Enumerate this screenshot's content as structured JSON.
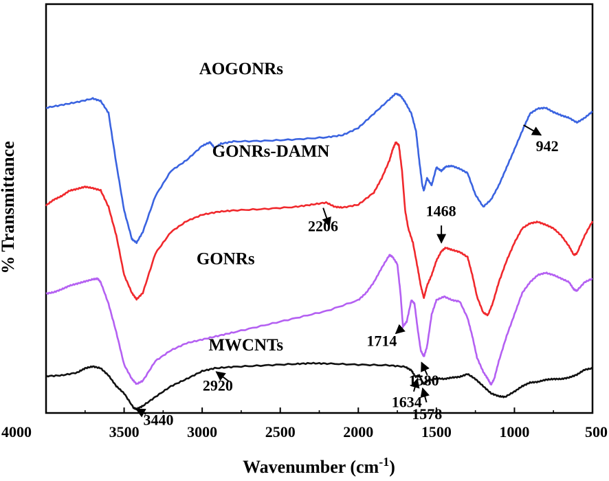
{
  "chart_data": {
    "type": "line",
    "title": "",
    "xlabel": "Wavenumber (cm",
    "xlabel_sup": "-1",
    "xlabel_close": ")",
    "ylabel": "% Transmittance",
    "xlim": [
      4000,
      500
    ],
    "x_reversed": true,
    "y_ticks_shown": false,
    "grid": false,
    "legend": "none (series labelled directly on plot)",
    "x_ticks": [
      4000,
      3500,
      3000,
      2500,
      2000,
      1500,
      1000,
      500
    ],
    "x_tick_labels": [
      "4000",
      "3500",
      "3000",
      "2500",
      "2000",
      "1500",
      "1000",
      "500"
    ],
    "series": [
      {
        "name": "AOGONRs",
        "color": "#3a63e0",
        "points": [
          [
            4000,
            0.776
          ],
          [
            3900,
            0.784
          ],
          [
            3800,
            0.792
          ],
          [
            3700,
            0.802
          ],
          [
            3650,
            0.795
          ],
          [
            3600,
            0.762
          ],
          [
            3550,
            0.62
          ],
          [
            3500,
            0.49
          ],
          [
            3450,
            0.41
          ],
          [
            3420,
            0.4
          ],
          [
            3380,
            0.43
          ],
          [
            3300,
            0.53
          ],
          [
            3200,
            0.6
          ],
          [
            3100,
            0.63
          ],
          [
            3000,
            0.67
          ],
          [
            2950,
            0.68
          ],
          [
            2920,
            0.664
          ],
          [
            2880,
            0.676
          ],
          [
            2800,
            0.682
          ],
          [
            2600,
            0.684
          ],
          [
            2400,
            0.688
          ],
          [
            2200,
            0.694
          ],
          [
            2100,
            0.7
          ],
          [
            2000,
            0.72
          ],
          [
            1900,
            0.76
          ],
          [
            1800,
            0.8
          ],
          [
            1760,
            0.816
          ],
          [
            1730,
            0.81
          ],
          [
            1700,
            0.792
          ],
          [
            1660,
            0.76
          ],
          [
            1630,
            0.71
          ],
          [
            1610,
            0.63
          ],
          [
            1590,
            0.56
          ],
          [
            1580,
            0.545
          ],
          [
            1560,
            0.58
          ],
          [
            1530,
            0.56
          ],
          [
            1500,
            0.61
          ],
          [
            1468,
            0.6
          ],
          [
            1440,
            0.612
          ],
          [
            1400,
            0.614
          ],
          [
            1350,
            0.606
          ],
          [
            1300,
            0.594
          ],
          [
            1250,
            0.534
          ],
          [
            1200,
            0.5
          ],
          [
            1150,
            0.52
          ],
          [
            1100,
            0.56
          ],
          [
            1050,
            0.61
          ],
          [
            1000,
            0.66
          ],
          [
            942,
            0.72
          ],
          [
            900,
            0.76
          ],
          [
            850,
            0.774
          ],
          [
            800,
            0.776
          ],
          [
            750,
            0.764
          ],
          [
            700,
            0.755
          ],
          [
            650,
            0.748
          ],
          [
            600,
            0.735
          ],
          [
            550,
            0.748
          ],
          [
            500,
            0.766
          ]
        ]
      },
      {
        "name": "GONRs-DAMN",
        "color": "#f0282c",
        "points": [
          [
            4000,
            0.504
          ],
          [
            3950,
            0.52
          ],
          [
            3900,
            0.53
          ],
          [
            3850,
            0.545
          ],
          [
            3800,
            0.55
          ],
          [
            3750,
            0.556
          ],
          [
            3700,
            0.552
          ],
          [
            3650,
            0.546
          ],
          [
            3600,
            0.5
          ],
          [
            3550,
            0.42
          ],
          [
            3500,
            0.31
          ],
          [
            3450,
            0.26
          ],
          [
            3420,
            0.242
          ],
          [
            3380,
            0.26
          ],
          [
            3300,
            0.37
          ],
          [
            3200,
            0.43
          ],
          [
            3100,
            0.46
          ],
          [
            3000,
            0.478
          ],
          [
            2900,
            0.486
          ],
          [
            2800,
            0.49
          ],
          [
            2600,
            0.494
          ],
          [
            2400,
            0.5
          ],
          [
            2300,
            0.506
          ],
          [
            2206,
            0.512
          ],
          [
            2150,
            0.5
          ],
          [
            2100,
            0.498
          ],
          [
            2000,
            0.506
          ],
          [
            1900,
            0.54
          ],
          [
            1850,
            0.58
          ],
          [
            1800,
            0.63
          ],
          [
            1780,
            0.66
          ],
          [
            1760,
            0.68
          ],
          [
            1740,
            0.672
          ],
          [
            1720,
            0.6
          ],
          [
            1700,
            0.49
          ],
          [
            1680,
            0.44
          ],
          [
            1650,
            0.4
          ],
          [
            1620,
            0.33
          ],
          [
            1600,
            0.28
          ],
          [
            1580,
            0.246
          ],
          [
            1560,
            0.28
          ],
          [
            1530,
            0.31
          ],
          [
            1500,
            0.35
          ],
          [
            1468,
            0.376
          ],
          [
            1440,
            0.386
          ],
          [
            1400,
            0.38
          ],
          [
            1350,
            0.374
          ],
          [
            1300,
            0.36
          ],
          [
            1270,
            0.31
          ],
          [
            1240,
            0.25
          ],
          [
            1200,
            0.205
          ],
          [
            1170,
            0.198
          ],
          [
            1140,
            0.23
          ],
          [
            1100,
            0.29
          ],
          [
            1050,
            0.35
          ],
          [
            1000,
            0.4
          ],
          [
            950,
            0.44
          ],
          [
            900,
            0.454
          ],
          [
            850,
            0.458
          ],
          [
            800,
            0.45
          ],
          [
            750,
            0.44
          ],
          [
            700,
            0.42
          ],
          [
            650,
            0.39
          ],
          [
            620,
            0.366
          ],
          [
            600,
            0.37
          ],
          [
            550,
            0.42
          ],
          [
            500,
            0.46
          ]
        ]
      },
      {
        "name": "GONRs",
        "color": "#b460f2",
        "points": [
          [
            4000,
            0.258
          ],
          [
            3950,
            0.262
          ],
          [
            3900,
            0.27
          ],
          [
            3850,
            0.28
          ],
          [
            3800,
            0.286
          ],
          [
            3750,
            0.292
          ],
          [
            3700,
            0.298
          ],
          [
            3670,
            0.3
          ],
          [
            3650,
            0.29
          ],
          [
            3600,
            0.23
          ],
          [
            3550,
            0.15
          ],
          [
            3500,
            0.06
          ],
          [
            3450,
            0.02
          ],
          [
            3420,
            0.006
          ],
          [
            3380,
            0.015
          ],
          [
            3300,
            0.07
          ],
          [
            3200,
            0.1
          ],
          [
            3100,
            0.12
          ],
          [
            3000,
            0.13
          ],
          [
            2900,
            0.14
          ],
          [
            2800,
            0.15
          ],
          [
            2600,
            0.17
          ],
          [
            2400,
            0.19
          ],
          [
            2200,
            0.21
          ],
          [
            2000,
            0.24
          ],
          [
            1950,
            0.26
          ],
          [
            1900,
            0.29
          ],
          [
            1850,
            0.33
          ],
          [
            1800,
            0.366
          ],
          [
            1780,
            0.36
          ],
          [
            1750,
            0.34
          ],
          [
            1730,
            0.26
          ],
          [
            1714,
            0.166
          ],
          [
            1690,
            0.18
          ],
          [
            1660,
            0.24
          ],
          [
            1640,
            0.23
          ],
          [
            1620,
            0.16
          ],
          [
            1600,
            0.1
          ],
          [
            1580,
            0.082
          ],
          [
            1560,
            0.11
          ],
          [
            1530,
            0.2
          ],
          [
            1500,
            0.24
          ],
          [
            1450,
            0.25
          ],
          [
            1400,
            0.24
          ],
          [
            1350,
            0.236
          ],
          [
            1300,
            0.19
          ],
          [
            1270,
            0.14
          ],
          [
            1240,
            0.08
          ],
          [
            1200,
            0.04
          ],
          [
            1170,
            0.02
          ],
          [
            1150,
            0.004
          ],
          [
            1130,
            0.02
          ],
          [
            1100,
            0.07
          ],
          [
            1050,
            0.14
          ],
          [
            1000,
            0.2
          ],
          [
            950,
            0.26
          ],
          [
            900,
            0.29
          ],
          [
            850,
            0.31
          ],
          [
            800,
            0.316
          ],
          [
            750,
            0.31
          ],
          [
            700,
            0.3
          ],
          [
            650,
            0.29
          ],
          [
            620,
            0.27
          ],
          [
            600,
            0.266
          ],
          [
            550,
            0.29
          ],
          [
            500,
            0.3
          ]
        ]
      },
      {
        "name": "MWCNTs",
        "color": "#111111",
        "points": [
          [
            4000,
            0.028
          ],
          [
            3900,
            0.03
          ],
          [
            3800,
            0.038
          ],
          [
            3750,
            0.05
          ],
          [
            3700,
            0.055
          ],
          [
            3650,
            0.05
          ],
          [
            3600,
            0.03
          ],
          [
            3550,
            0.0
          ],
          [
            3500,
            -0.02
          ],
          [
            3440,
            -0.06
          ],
          [
            3420,
            -0.064
          ],
          [
            3380,
            -0.055
          ],
          [
            3300,
            -0.03
          ],
          [
            3200,
            0.0
          ],
          [
            3100,
            0.02
          ],
          [
            3000,
            0.042
          ],
          [
            2920,
            0.05
          ],
          [
            2800,
            0.054
          ],
          [
            2600,
            0.058
          ],
          [
            2400,
            0.062
          ],
          [
            2300,
            0.064
          ],
          [
            2200,
            0.063
          ],
          [
            2000,
            0.06
          ],
          [
            1800,
            0.058
          ],
          [
            1700,
            0.054
          ],
          [
            1660,
            0.044
          ],
          [
            1634,
            0.026
          ],
          [
            1610,
            0.03
          ],
          [
            1590,
            0.012
          ],
          [
            1578,
            0.006
          ],
          [
            1560,
            0.014
          ],
          [
            1500,
            0.022
          ],
          [
            1450,
            0.02
          ],
          [
            1400,
            0.024
          ],
          [
            1350,
            0.026
          ],
          [
            1300,
            0.034
          ],
          [
            1250,
            0.02
          ],
          [
            1200,
            0.0
          ],
          [
            1150,
            -0.02
          ],
          [
            1100,
            -0.028
          ],
          [
            1060,
            -0.03
          ],
          [
            1000,
            -0.015
          ],
          [
            950,
            0.0
          ],
          [
            900,
            0.01
          ],
          [
            850,
            0.012
          ],
          [
            800,
            0.018
          ],
          [
            750,
            0.02
          ],
          [
            700,
            0.02
          ],
          [
            650,
            0.024
          ],
          [
            600,
            0.032
          ],
          [
            550,
            0.046
          ],
          [
            500,
            0.05
          ]
        ]
      }
    ],
    "series_labels": [
      {
        "text": "AOGONRs",
        "at": [
          2750,
          0.87
        ]
      },
      {
        "text": "GONRs-DAMN",
        "at": [
          2560,
          0.64
        ]
      },
      {
        "text": "GONRs",
        "at": [
          2850,
          0.34
        ]
      },
      {
        "text": "MWCNTs",
        "at": [
          2720,
          0.1
        ]
      }
    ],
    "annotations": [
      {
        "text": "942",
        "arrow_from": [
          830,
          0.7
        ],
        "arrow_to": [
          942,
          0.728
        ],
        "text_at": [
          790,
          0.655
        ]
      },
      {
        "text": "2206",
        "arrow_from": [
          2185,
          0.446
        ],
        "arrow_to": [
          2225,
          0.497
        ],
        "text_at": [
          2226,
          0.432
        ]
      },
      {
        "text": "1468",
        "arrow_from": [
          1468,
          0.4
        ],
        "arrow_to": [
          1468,
          0.448
        ],
        "text_at": [
          1470,
          0.474
        ]
      },
      {
        "text": "1714",
        "arrow_from": [
          1760,
          0.147
        ],
        "arrow_to": [
          1718,
          0.163
        ],
        "text_at": [
          1850,
          0.112
        ]
      },
      {
        "text": "1580",
        "arrow_from": [
          1595,
          0.066
        ],
        "arrow_to": [
          1558,
          0.031
        ],
        "text_at": [
          1580,
          0.002
        ]
      },
      {
        "text": "3440",
        "arrow_from": [
          3422,
          -0.064
        ],
        "arrow_to": [
          3360,
          -0.078
        ],
        "text_at": [
          3280,
          -0.108
        ]
      },
      {
        "text": "2920",
        "arrow_from": [
          2910,
          0.04
        ],
        "arrow_to": [
          2828,
          0.013
        ],
        "text_at": [
          2900,
          -0.012
        ]
      },
      {
        "text": "1634",
        "arrow_from": [
          1622,
          0.02
        ],
        "arrow_to": [
          1645,
          -0.015
        ],
        "text_at": [
          1690,
          -0.058
        ]
      },
      {
        "text": "1578",
        "arrow_from": [
          1588,
          -0.006
        ],
        "arrow_to": [
          1563,
          -0.045
        ],
        "text_at": [
          1560,
          -0.092
        ]
      }
    ]
  }
}
